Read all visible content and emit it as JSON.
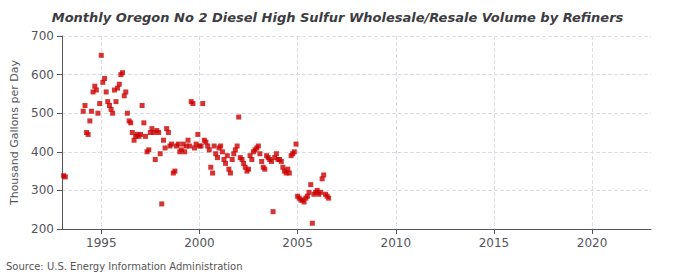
{
  "chart_data": {
    "type": "scatter",
    "title": "Monthly Oregon No 2 Diesel High Sulfur Wholesale/Resale Volume by Refiners",
    "ylabel": "Thousand Gallons per Day",
    "annotations": [
      "Source: U.S. Energy Information Administration"
    ],
    "color": "#cc0000",
    "marker": "square",
    "grid": true,
    "xlim": [
      1993.0,
      2023.0
    ],
    "ylim": [
      200,
      700
    ],
    "xticks": [
      1995,
      2000,
      2005,
      2010,
      2015,
      2020
    ],
    "yticks": [
      200,
      300,
      400,
      500,
      600,
      700
    ],
    "x": [
      1993.08,
      1993.17,
      1994.08,
      1994.17,
      1994.25,
      1994.33,
      1994.42,
      1994.5,
      1994.58,
      1994.67,
      1994.75,
      1994.83,
      1994.92,
      1995.0,
      1995.08,
      1995.17,
      1995.25,
      1995.33,
      1995.42,
      1995.5,
      1995.58,
      1995.67,
      1995.75,
      1995.83,
      1995.92,
      1996.0,
      1996.08,
      1996.17,
      1996.25,
      1996.33,
      1996.42,
      1996.5,
      1996.58,
      1996.67,
      1996.75,
      1996.83,
      1996.92,
      1997.0,
      1997.08,
      1997.17,
      1997.25,
      1997.33,
      1997.42,
      1997.5,
      1997.58,
      1997.67,
      1997.75,
      1997.83,
      1997.92,
      1998.0,
      1998.08,
      1998.17,
      1998.25,
      1998.33,
      1998.42,
      1998.5,
      1998.58,
      1998.67,
      1998.75,
      1998.83,
      1998.92,
      1999.0,
      1999.08,
      1999.17,
      1999.25,
      1999.33,
      1999.42,
      1999.5,
      1999.58,
      1999.67,
      1999.75,
      1999.83,
      1999.92,
      2000.0,
      2000.08,
      2000.17,
      2000.25,
      2000.33,
      2000.42,
      2000.5,
      2000.58,
      2000.67,
      2000.75,
      2000.83,
      2000.92,
      2001.0,
      2001.08,
      2001.17,
      2001.25,
      2001.33,
      2001.42,
      2001.5,
      2001.58,
      2001.67,
      2001.75,
      2001.83,
      2001.92,
      2002.0,
      2002.08,
      2002.17,
      2002.25,
      2002.33,
      2002.42,
      2002.5,
      2002.58,
      2002.67,
      2002.75,
      2002.83,
      2002.92,
      2003.0,
      2003.08,
      2003.17,
      2003.25,
      2003.33,
      2003.42,
      2003.5,
      2003.58,
      2003.67,
      2003.75,
      2003.83,
      2003.92,
      2004.0,
      2004.08,
      2004.17,
      2004.25,
      2004.33,
      2004.42,
      2004.5,
      2004.58,
      2004.67,
      2004.75,
      2004.83,
      2004.92,
      2005.0,
      2005.08,
      2005.17,
      2005.25,
      2005.33,
      2005.42,
      2005.5,
      2005.58,
      2005.67,
      2005.75,
      2005.83,
      2005.92,
      2006.0,
      2006.08,
      2006.17,
      2006.25,
      2006.33,
      2006.42,
      2006.5,
      2006.58
    ],
    "values": [
      338,
      335,
      505,
      520,
      450,
      445,
      480,
      505,
      555,
      570,
      560,
      500,
      525,
      650,
      580,
      590,
      555,
      530,
      520,
      510,
      500,
      560,
      530,
      565,
      575,
      600,
      605,
      545,
      555,
      500,
      480,
      475,
      450,
      430,
      440,
      445,
      440,
      445,
      520,
      475,
      440,
      400,
      405,
      450,
      460,
      450,
      380,
      455,
      450,
      395,
      265,
      430,
      410,
      460,
      450,
      415,
      420,
      345,
      350,
      415,
      420,
      400,
      405,
      420,
      400,
      415,
      430,
      415,
      530,
      525,
      410,
      420,
      445,
      415,
      415,
      525,
      430,
      425,
      415,
      405,
      360,
      345,
      415,
      395,
      385,
      410,
      415,
      400,
      380,
      370,
      390,
      355,
      345,
      380,
      395,
      405,
      415,
      490,
      385,
      380,
      370,
      360,
      350,
      355,
      390,
      380,
      400,
      405,
      410,
      415,
      395,
      375,
      360,
      355,
      390,
      385,
      380,
      375,
      245,
      385,
      395,
      380,
      380,
      375,
      360,
      350,
      345,
      355,
      345,
      390,
      395,
      400,
      420,
      285,
      280,
      275,
      275,
      270,
      280,
      285,
      295,
      315,
      215,
      290,
      295,
      300,
      290,
      295,
      330,
      340,
      290,
      285,
      280
    ]
  }
}
